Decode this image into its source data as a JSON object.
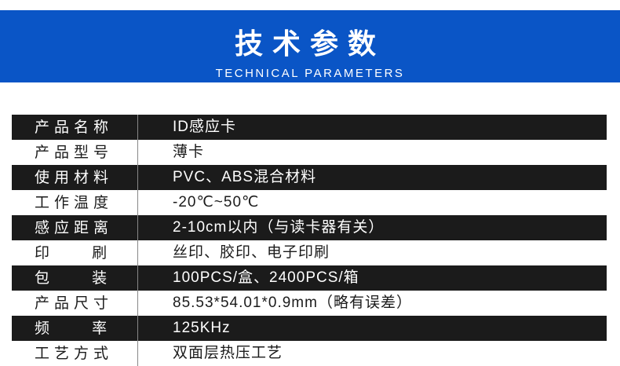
{
  "header": {
    "title": "技术参数",
    "subtitle": "TECHNICAL PARAMETERS",
    "background": "#0a55c6"
  },
  "specs": [
    {
      "label": "产品名称",
      "value": "ID感应卡"
    },
    {
      "label": "产品型号",
      "value": "薄卡"
    },
    {
      "label": "使用材料",
      "value": "PVC、ABS混合材料"
    },
    {
      "label": "工作温度",
      "value": "-20℃~50℃"
    },
    {
      "label": "感应距离",
      "value": "2-10cm以内（与读卡器有关）"
    },
    {
      "label": "印    刷",
      "value": "丝印、胶印、电子印刷"
    },
    {
      "label": "包    装",
      "value": "100PCS/盒、2400PCS/箱"
    },
    {
      "label": "产品尺寸",
      "value": "85.53*54.01*0.9mm（略有误差）"
    },
    {
      "label": "频    率",
      "value": "125KHz"
    },
    {
      "label": "工艺方式",
      "value": "双面层热压工艺"
    }
  ]
}
